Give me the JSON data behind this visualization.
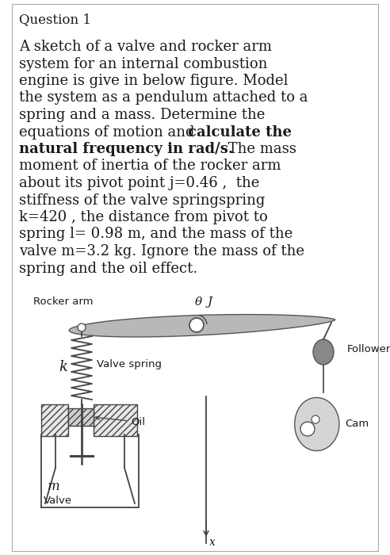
{
  "title": "Question 1",
  "lines": [
    {
      "text": "A sketch of a valve and rocker arm",
      "bold": false
    },
    {
      "text": "system for an internal combustion",
      "bold": false
    },
    {
      "text": "engine is give in below figure. Model",
      "bold": false
    },
    {
      "text": "the system as a pendulum attached to a",
      "bold": false
    },
    {
      "text": "spring and a mass. Determine the",
      "bold": false
    },
    {
      "text_parts": [
        {
          "text": "equations of motion and ",
          "bold": false
        },
        {
          "text": "calculate the",
          "bold": true
        }
      ]
    },
    {
      "text_parts": [
        {
          "text": "natural frequency in rad/s.",
          "bold": true
        },
        {
          "text": " The mass",
          "bold": false
        }
      ]
    },
    {
      "text": "moment of inertia of the rocker arm",
      "bold": false
    },
    {
      "text": "about its pivot point j=0.46 ,  the",
      "bold": false
    },
    {
      "text": "stiffness of the valve springspring",
      "bold": false
    },
    {
      "text": "k=420 , the distance from pivot to",
      "bold": false
    },
    {
      "text": "spring l= 0.98 m, and the mass of the",
      "bold": false
    },
    {
      "text": "valve m=3.2 kg. Ignore the mass of the",
      "bold": false
    },
    {
      "text": "spring and the oil effect.",
      "bold": false
    }
  ],
  "label_rocker": "Rocker arm",
  "label_theta": "θ",
  "label_J": "J",
  "label_k": "k",
  "label_valve_spring": "Valve spring",
  "label_oil": "Oil",
  "label_m": "m",
  "label_valve": "Valve",
  "label_follower": "Follower",
  "label_cam": "Cam",
  "label_x": "x",
  "bg_color": "#ffffff",
  "text_color": "#1a1a1a",
  "arm_color": "#aaaaaa",
  "border_color": "#999999",
  "line_color": "#444444"
}
